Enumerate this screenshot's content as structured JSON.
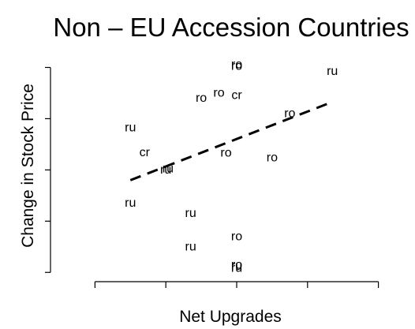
{
  "chart_data": {
    "type": "scatter",
    "title": "Non – EU Accession Countries",
    "xlabel": "Net Upgrades",
    "ylabel": "Change in Stock Price",
    "xlim": [
      -2.65,
      2.45
    ],
    "ylim": [
      -2.15,
      2.3
    ],
    "x_ticks": [
      -2,
      -1,
      0,
      1,
      2
    ],
    "y_ticks": [
      -2,
      -1,
      0,
      1,
      2
    ],
    "tick_labels_shown": false,
    "grid": false,
    "legend": "none",
    "point_labels": [
      {
        "text": "ru",
        "x": -1.5,
        "y": 0.82
      },
      {
        "text": "cr",
        "x": -1.3,
        "y": 0.34
      },
      {
        "text": "ru",
        "x": -0.97,
        "y": 0.02
      },
      {
        "text": "ru",
        "x": -1.0,
        "y": 0.0
      },
      {
        "text": "ru",
        "x": -1.5,
        "y": -0.65
      },
      {
        "text": "ro",
        "x": -0.5,
        "y": 1.4
      },
      {
        "text": "ro",
        "x": -0.25,
        "y": 1.5
      },
      {
        "text": "ro",
        "x": 0.0,
        "y": 2.05
      },
      {
        "text": "ro",
        "x": 0.0,
        "y": 2.02
      },
      {
        "text": "cr",
        "x": 0.0,
        "y": 1.45
      },
      {
        "text": "ro",
        "x": -0.15,
        "y": 0.33
      },
      {
        "text": "ro",
        "x": 0.5,
        "y": 0.24
      },
      {
        "text": "ro",
        "x": 0.75,
        "y": 1.1
      },
      {
        "text": "ru",
        "x": 1.35,
        "y": 1.92
      },
      {
        "text": "ru",
        "x": -0.65,
        "y": -0.85
      },
      {
        "text": "ru",
        "x": -0.65,
        "y": -1.5
      },
      {
        "text": "ro",
        "x": 0.0,
        "y": -1.3
      },
      {
        "text": "ru",
        "x": 0.0,
        "y": -1.88
      },
      {
        "text": "ru",
        "x": 0.0,
        "y": -1.92
      },
      {
        "text": "ro",
        "x": 0.0,
        "y": -1.86
      }
    ],
    "fit_line": {
      "x": [
        -1.5,
        1.3
      ],
      "y": [
        -0.2,
        1.3
      ],
      "style": "dashed"
    }
  }
}
